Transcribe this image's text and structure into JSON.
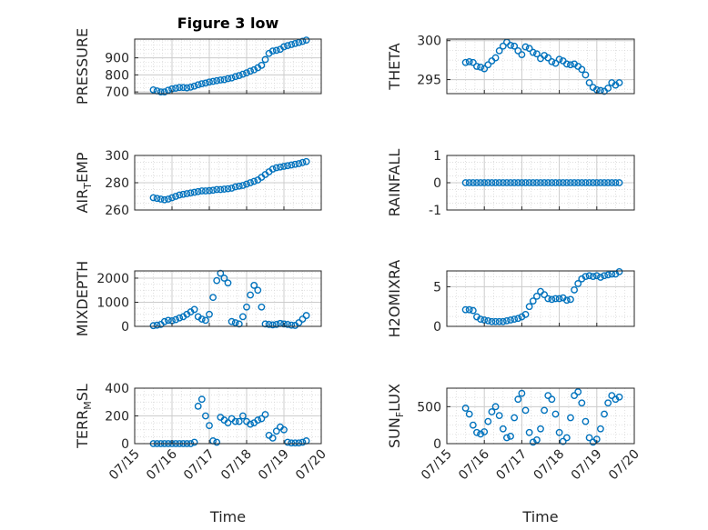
{
  "figure": {
    "title": "Figure 3 low",
    "xlabel": "Time",
    "x_tick_labels": [
      "07/15",
      "07/16",
      "07/17",
      "07/18",
      "07/19",
      "07/20"
    ],
    "marker_color": "#0072BD"
  },
  "chart_data": [
    {
      "type": "scatter",
      "ylabel": "PRESSURE",
      "ylim": [
        690,
        1010
      ],
      "yticks": [
        700,
        800,
        900
      ],
      "xlim": [
        0,
        5
      ],
      "grid": true,
      "x": [
        0.5,
        0.6,
        0.7,
        0.8,
        0.9,
        1.0,
        1.1,
        1.2,
        1.3,
        1.4,
        1.5,
        1.6,
        1.7,
        1.8,
        1.9,
        2.0,
        2.1,
        2.2,
        2.3,
        2.4,
        2.5,
        2.6,
        2.7,
        2.8,
        2.9,
        3.0,
        3.1,
        3.2,
        3.3,
        3.4,
        3.5,
        3.6,
        3.7,
        3.8,
        3.9,
        4.0,
        4.1,
        4.2,
        4.3,
        4.4,
        4.5,
        4.6
      ],
      "y": [
        712,
        706,
        700,
        700,
        710,
        718,
        722,
        726,
        726,
        724,
        728,
        734,
        742,
        748,
        752,
        758,
        762,
        766,
        770,
        772,
        778,
        782,
        790,
        796,
        804,
        812,
        822,
        830,
        842,
        856,
        890,
        926,
        940,
        944,
        950,
        965,
        972,
        978,
        984,
        990,
        997,
        1004
      ]
    },
    {
      "type": "scatter",
      "ylabel": "THETA",
      "ylim": [
        293.2,
        300.2
      ],
      "yticks": [
        295,
        300
      ],
      "xlim": [
        0,
        5
      ],
      "grid": true,
      "x": [
        0.5,
        0.6,
        0.7,
        0.8,
        0.9,
        1.0,
        1.1,
        1.2,
        1.3,
        1.4,
        1.5,
        1.6,
        1.7,
        1.8,
        1.9,
        2.0,
        2.1,
        2.2,
        2.3,
        2.4,
        2.5,
        2.6,
        2.7,
        2.8,
        2.9,
        3.0,
        3.1,
        3.2,
        3.3,
        3.4,
        3.5,
        3.6,
        3.7,
        3.8,
        3.9,
        4.0,
        4.1,
        4.2,
        4.3,
        4.4,
        4.5,
        4.6
      ],
      "y": [
        297.2,
        297.3,
        297.2,
        296.7,
        296.6,
        296.4,
        296.9,
        297.4,
        297.8,
        298.7,
        299.3,
        299.8,
        299.4,
        299.3,
        298.7,
        298.2,
        299.2,
        299.0,
        298.5,
        298.3,
        297.7,
        298.1,
        297.8,
        297.3,
        297.1,
        297.6,
        297.4,
        297.0,
        296.9,
        297.0,
        296.7,
        296.3,
        295.6,
        294.6,
        294.0,
        293.7,
        293.6,
        293.5,
        293.9,
        294.6,
        294.3,
        294.6
      ]
    },
    {
      "type": "scatter",
      "ylabel": "AIR_TEMP",
      "ylim": [
        260,
        300
      ],
      "yticks": [
        260,
        280,
        300
      ],
      "xlim": [
        0,
        5
      ],
      "grid": true,
      "x": [
        0.5,
        0.6,
        0.7,
        0.8,
        0.9,
        1.0,
        1.1,
        1.2,
        1.3,
        1.4,
        1.5,
        1.6,
        1.7,
        1.8,
        1.9,
        2.0,
        2.1,
        2.2,
        2.3,
        2.4,
        2.5,
        2.6,
        2.7,
        2.8,
        2.9,
        3.0,
        3.1,
        3.2,
        3.3,
        3.4,
        3.5,
        3.6,
        3.7,
        3.8,
        3.9,
        4.0,
        4.1,
        4.2,
        4.3,
        4.4,
        4.5,
        4.6
      ],
      "y": [
        269,
        268.5,
        268,
        267.5,
        268,
        269,
        270,
        271,
        271.5,
        272,
        272.5,
        273,
        273.5,
        274,
        274,
        274.2,
        274.5,
        275,
        275,
        275.3,
        275.6,
        276,
        277,
        277.5,
        278,
        279,
        280,
        281,
        282,
        284,
        286,
        288,
        290,
        291,
        291.5,
        292,
        292.5,
        293,
        293.5,
        294,
        294.8,
        295.5
      ]
    },
    {
      "type": "scatter",
      "ylabel": "RAINFALL",
      "ylim": [
        -1,
        1
      ],
      "yticks": [
        -1,
        0,
        1
      ],
      "xlim": [
        0,
        5
      ],
      "grid": true,
      "x": [
        0.5,
        0.6,
        0.7,
        0.8,
        0.9,
        1.0,
        1.1,
        1.2,
        1.3,
        1.4,
        1.5,
        1.6,
        1.7,
        1.8,
        1.9,
        2.0,
        2.1,
        2.2,
        2.3,
        2.4,
        2.5,
        2.6,
        2.7,
        2.8,
        2.9,
        3.0,
        3.1,
        3.2,
        3.3,
        3.4,
        3.5,
        3.6,
        3.7,
        3.8,
        3.9,
        4.0,
        4.1,
        4.2,
        4.3,
        4.4,
        4.5,
        4.6
      ],
      "y": [
        0,
        0,
        0,
        0,
        0,
        0,
        0,
        0,
        0,
        0,
        0,
        0,
        0,
        0,
        0,
        0,
        0,
        0,
        0,
        0,
        0,
        0,
        0,
        0,
        0,
        0,
        0,
        0,
        0,
        0,
        0,
        0,
        0,
        0,
        0,
        0,
        0,
        0,
        0,
        0,
        0,
        0
      ]
    },
    {
      "type": "scatter",
      "ylabel": "MIXDEPTH",
      "ylim": [
        0,
        2300
      ],
      "yticks": [
        0,
        1000,
        2000
      ],
      "xlim": [
        0,
        5
      ],
      "grid": true,
      "x": [
        0.5,
        0.6,
        0.7,
        0.8,
        0.9,
        1.0,
        1.1,
        1.2,
        1.3,
        1.4,
        1.5,
        1.6,
        1.7,
        1.8,
        1.9,
        2.0,
        2.1,
        2.2,
        2.3,
        2.4,
        2.5,
        2.6,
        2.7,
        2.8,
        2.9,
        3.0,
        3.1,
        3.2,
        3.3,
        3.4,
        3.5,
        3.6,
        3.7,
        3.8,
        3.9,
        4.0,
        4.1,
        4.2,
        4.3,
        4.4,
        4.5,
        4.6
      ],
      "y": [
        30,
        50,
        80,
        200,
        250,
        230,
        280,
        350,
        400,
        500,
        600,
        700,
        400,
        300,
        250,
        500,
        1200,
        1900,
        2200,
        2000,
        1800,
        200,
        150,
        100,
        400,
        800,
        1300,
        1700,
        1500,
        800,
        100,
        80,
        60,
        80,
        120,
        100,
        80,
        50,
        40,
        150,
        300,
        450
      ]
    },
    {
      "type": "scatter",
      "ylabel": "H2OMIXRA",
      "ylim": [
        0,
        7
      ],
      "yticks": [
        0,
        5
      ],
      "xlim": [
        0,
        5
      ],
      "grid": true,
      "x": [
        0.5,
        0.6,
        0.7,
        0.8,
        0.9,
        1.0,
        1.1,
        1.2,
        1.3,
        1.4,
        1.5,
        1.6,
        1.7,
        1.8,
        1.9,
        2.0,
        2.1,
        2.2,
        2.3,
        2.4,
        2.5,
        2.6,
        2.7,
        2.8,
        2.9,
        3.0,
        3.1,
        3.2,
        3.3,
        3.4,
        3.5,
        3.6,
        3.7,
        3.8,
        3.9,
        4.0,
        4.1,
        4.2,
        4.3,
        4.4,
        4.5,
        4.6
      ],
      "y": [
        2.1,
        2.1,
        2.0,
        1.2,
        0.9,
        0.8,
        0.7,
        0.6,
        0.6,
        0.6,
        0.6,
        0.7,
        0.8,
        0.9,
        1.0,
        1.2,
        1.5,
        2.5,
        3.2,
        3.8,
        4.4,
        4.0,
        3.5,
        3.4,
        3.5,
        3.5,
        3.6,
        3.3,
        3.4,
        4.6,
        5.4,
        6.0,
        6.3,
        6.4,
        6.3,
        6.4,
        6.2,
        6.4,
        6.5,
        6.6,
        6.6,
        6.9
      ]
    },
    {
      "type": "scatter",
      "ylabel": "TERR_MSL",
      "ylim": [
        0,
        400
      ],
      "yticks": [
        0,
        200,
        400
      ],
      "xlim": [
        0,
        5
      ],
      "grid": true,
      "x": [
        0.5,
        0.6,
        0.7,
        0.8,
        0.9,
        1.0,
        1.1,
        1.2,
        1.3,
        1.4,
        1.5,
        1.6,
        1.7,
        1.8,
        1.9,
        2.0,
        2.1,
        2.2,
        2.3,
        2.4,
        2.5,
        2.6,
        2.7,
        2.8,
        2.9,
        3.0,
        3.1,
        3.2,
        3.3,
        3.4,
        3.5,
        3.6,
        3.7,
        3.8,
        3.9,
        4.0,
        4.1,
        4.2,
        4.3,
        4.4,
        4.5,
        4.6
      ],
      "y": [
        0,
        0,
        0,
        0,
        0,
        0,
        0,
        0,
        0,
        0,
        0,
        10,
        270,
        320,
        200,
        130,
        20,
        10,
        190,
        170,
        150,
        180,
        160,
        160,
        200,
        160,
        140,
        150,
        170,
        180,
        210,
        60,
        40,
        90,
        120,
        100,
        10,
        5,
        5,
        5,
        10,
        20
      ]
    },
    {
      "type": "scatter",
      "ylabel": "SUN_FLUX",
      "ylim": [
        0,
        750
      ],
      "yticks": [
        0,
        500
      ],
      "xlim": [
        0,
        5
      ],
      "grid": true,
      "x": [
        0.5,
        0.6,
        0.7,
        0.8,
        0.9,
        1.0,
        1.1,
        1.2,
        1.3,
        1.4,
        1.5,
        1.6,
        1.7,
        1.8,
        1.9,
        2.0,
        2.1,
        2.2,
        2.3,
        2.4,
        2.5,
        2.6,
        2.7,
        2.8,
        2.9,
        3.0,
        3.1,
        3.2,
        3.3,
        3.4,
        3.5,
        3.6,
        3.7,
        3.8,
        3.9,
        4.0,
        4.1,
        4.2,
        4.3,
        4.4,
        4.5,
        4.6
      ],
      "y": [
        480,
        400,
        250,
        150,
        130,
        160,
        300,
        430,
        500,
        380,
        200,
        80,
        100,
        350,
        600,
        680,
        450,
        150,
        20,
        50,
        200,
        450,
        650,
        600,
        400,
        150,
        30,
        80,
        350,
        650,
        700,
        550,
        300,
        80,
        20,
        60,
        200,
        400,
        550,
        650,
        600,
        630
      ]
    }
  ]
}
